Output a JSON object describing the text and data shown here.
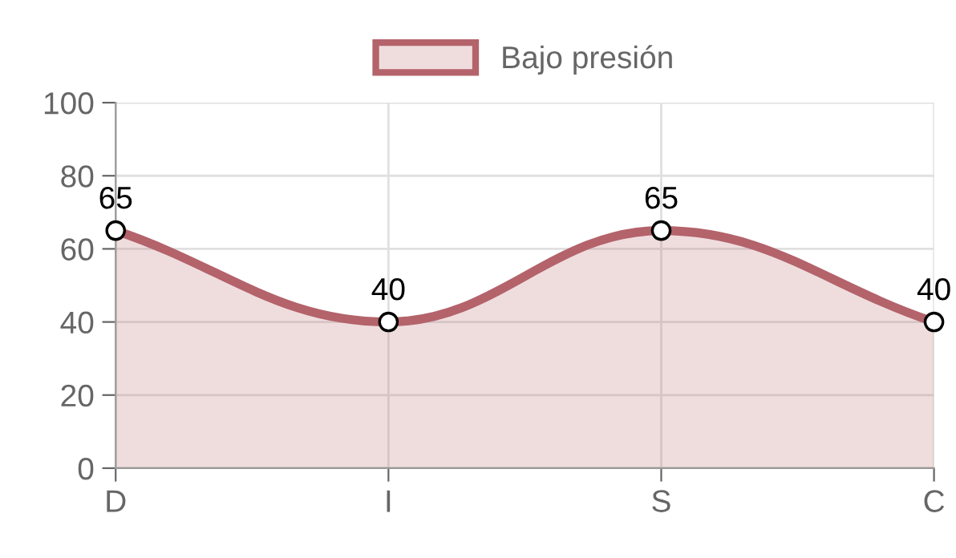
{
  "chart_data": {
    "type": "area",
    "categories": [
      "D",
      "I",
      "S",
      "C"
    ],
    "series": [
      {
        "name": "Bajo presión",
        "color": "#b4636b",
        "values": [
          65,
          40,
          65,
          40
        ]
      }
    ],
    "ylim": [
      0,
      100
    ],
    "yticks": [
      0,
      20,
      40,
      60,
      80,
      100
    ],
    "grid": true,
    "legend": "top",
    "marker": "circle",
    "data_labels": true
  }
}
